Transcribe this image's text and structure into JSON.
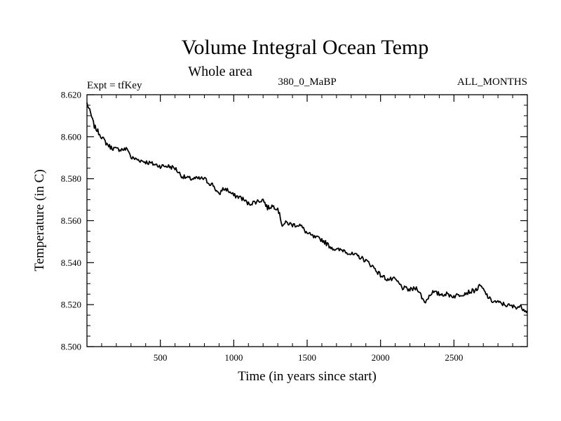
{
  "chart_data": {
    "type": "line",
    "title": "Volume Integral Ocean Temp",
    "subtitle": "Whole area",
    "header_left": "Expt = tfKey",
    "header_center": "380_0_MaBP",
    "header_right": "ALL_MONTHS",
    "xlabel": "Time (in years since start)",
    "ylabel": "Temperature (in C)",
    "xlim": [
      0,
      3000
    ],
    "ylim": [
      8.5,
      8.62
    ],
    "x_ticks": [
      500,
      1000,
      1500,
      2000,
      2500
    ],
    "x_tick_labels": [
      "500",
      "1000",
      "1500",
      "2000",
      "2500"
    ],
    "y_ticks": [
      8.5,
      8.52,
      8.54,
      8.56,
      8.58,
      8.6,
      8.62
    ],
    "y_tick_labels": [
      "8.500",
      "8.520",
      "8.540",
      "8.560",
      "8.580",
      "8.600",
      "8.620"
    ],
    "grid": false,
    "series": [
      {
        "color": "#000000",
        "points": [
          [
            0,
            8.616
          ],
          [
            25,
            8.611
          ],
          [
            50,
            8.605
          ],
          [
            80,
            8.602
          ],
          [
            100,
            8.6
          ],
          [
            130,
            8.597
          ],
          [
            160,
            8.595
          ],
          [
            200,
            8.594
          ],
          [
            250,
            8.594
          ],
          [
            280,
            8.594
          ],
          [
            300,
            8.59
          ],
          [
            350,
            8.589
          ],
          [
            400,
            8.588
          ],
          [
            450,
            8.587
          ],
          [
            500,
            8.586
          ],
          [
            550,
            8.586
          ],
          [
            600,
            8.585
          ],
          [
            650,
            8.581
          ],
          [
            700,
            8.58
          ],
          [
            750,
            8.58
          ],
          [
            800,
            8.58
          ],
          [
            830,
            8.578
          ],
          [
            860,
            8.577
          ],
          [
            900,
            8.572
          ],
          [
            920,
            8.575
          ],
          [
            950,
            8.575
          ],
          [
            1000,
            8.572
          ],
          [
            1050,
            8.571
          ],
          [
            1100,
            8.568
          ],
          [
            1150,
            8.569
          ],
          [
            1200,
            8.57
          ],
          [
            1230,
            8.566
          ],
          [
            1260,
            8.567
          ],
          [
            1300,
            8.566
          ],
          [
            1330,
            8.558
          ],
          [
            1360,
            8.559
          ],
          [
            1400,
            8.558
          ],
          [
            1450,
            8.558
          ],
          [
            1500,
            8.554
          ],
          [
            1550,
            8.552
          ],
          [
            1600,
            8.551
          ],
          [
            1650,
            8.548
          ],
          [
            1700,
            8.546
          ],
          [
            1750,
            8.546
          ],
          [
            1800,
            8.544
          ],
          [
            1850,
            8.543
          ],
          [
            1900,
            8.541
          ],
          [
            1950,
            8.538
          ],
          [
            2000,
            8.534
          ],
          [
            2050,
            8.532
          ],
          [
            2100,
            8.532
          ],
          [
            2150,
            8.528
          ],
          [
            2200,
            8.527
          ],
          [
            2250,
            8.528
          ],
          [
            2300,
            8.521
          ],
          [
            2350,
            8.526
          ],
          [
            2400,
            8.525
          ],
          [
            2450,
            8.525
          ],
          [
            2500,
            8.524
          ],
          [
            2550,
            8.525
          ],
          [
            2600,
            8.526
          ],
          [
            2650,
            8.527
          ],
          [
            2680,
            8.529
          ],
          [
            2700,
            8.527
          ],
          [
            2750,
            8.522
          ],
          [
            2800,
            8.521
          ],
          [
            2850,
            8.52
          ],
          [
            2900,
            8.519
          ],
          [
            2950,
            8.519
          ],
          [
            3000,
            8.517
          ]
        ]
      }
    ]
  }
}
